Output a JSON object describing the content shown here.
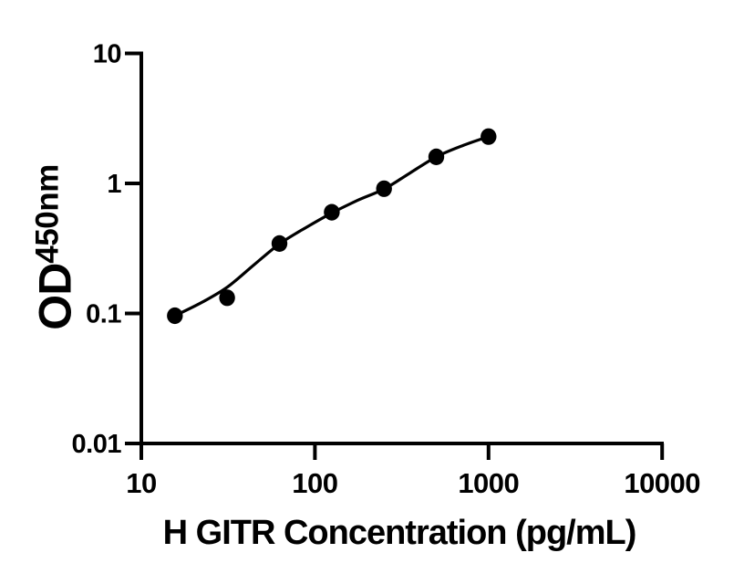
{
  "chart_data": {
    "type": "scatter",
    "title": "",
    "xlabel": "H GITR Concentration (pg/mL)",
    "ylabel": "OD450nm",
    "ylabel_main": "OD",
    "ylabel_sub": "450nm",
    "x_scale": "log",
    "y_scale": "log",
    "xlim": [
      10,
      10000
    ],
    "ylim": [
      0.01,
      10
    ],
    "grid": false,
    "legend": false,
    "ink_color": "#000000",
    "background_color": "#ffffff",
    "x_ticks": [
      {
        "value": 10,
        "label": "10"
      },
      {
        "value": 100,
        "label": "100"
      },
      {
        "value": 1000,
        "label": "1000"
      },
      {
        "value": 10000,
        "label": "10000"
      }
    ],
    "y_ticks": [
      {
        "value": 10,
        "label": "10"
      },
      {
        "value": 1,
        "label": "1"
      },
      {
        "value": 0.1,
        "label": "0.1"
      },
      {
        "value": 0.01,
        "label": "0.01"
      }
    ],
    "series": [
      {
        "marker": "filled-circle",
        "points": [
          {
            "concentration_pg_ml": 15.6,
            "od450": 0.096
          },
          {
            "concentration_pg_ml": 31.2,
            "od450": 0.132
          },
          {
            "concentration_pg_ml": 62.5,
            "od450": 0.345
          },
          {
            "concentration_pg_ml": 125,
            "od450": 0.6
          },
          {
            "concentration_pg_ml": 250,
            "od450": 0.91
          },
          {
            "concentration_pg_ml": 500,
            "od450": 1.6
          },
          {
            "concentration_pg_ml": 1000,
            "od450": 2.29
          }
        ]
      }
    ],
    "fit_curve_samples": [
      [
        15.6,
        0.096
      ],
      [
        22.4,
        0.122
      ],
      [
        31.4,
        0.16
      ],
      [
        44.5,
        0.236
      ],
      [
        62.4,
        0.342
      ],
      [
        88.6,
        0.457
      ],
      [
        125,
        0.592
      ],
      [
        176,
        0.74
      ],
      [
        252,
        0.91
      ],
      [
        352,
        1.2
      ],
      [
        500,
        1.6
      ],
      [
        707,
        1.95
      ],
      [
        1000,
        2.29
      ]
    ]
  }
}
